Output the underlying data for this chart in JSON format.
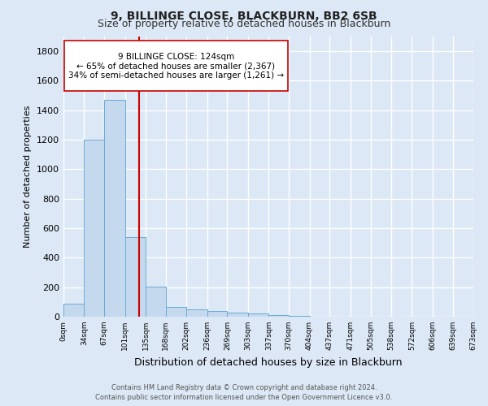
{
  "title": "9, BILLINGE CLOSE, BLACKBURN, BB2 6SB",
  "subtitle": "Size of property relative to detached houses in Blackburn",
  "xlabel": "Distribution of detached houses by size in Blackburn",
  "ylabel": "Number of detached properties",
  "bin_edges": [
    0,
    34,
    67,
    101,
    135,
    168,
    202,
    236,
    269,
    303,
    337,
    370,
    404,
    437,
    471,
    505,
    538,
    572,
    606,
    639,
    673
  ],
  "bin_labels": [
    "0sqm",
    "34sqm",
    "67sqm",
    "101sqm",
    "135sqm",
    "168sqm",
    "202sqm",
    "236sqm",
    "269sqm",
    "303sqm",
    "337sqm",
    "370sqm",
    "404sqm",
    "437sqm",
    "471sqm",
    "505sqm",
    "538sqm",
    "572sqm",
    "606sqm",
    "639sqm",
    "673sqm"
  ],
  "counts": [
    90,
    1200,
    1470,
    540,
    205,
    65,
    50,
    40,
    30,
    20,
    10,
    5,
    0,
    0,
    0,
    0,
    0,
    0,
    0,
    0
  ],
  "bar_color": "#c5d9ee",
  "bar_edge_color": "#6aaad4",
  "property_value": 124,
  "vline_color": "#cc0000",
  "annotation_line1": "9 BILLINGE CLOSE: 124sqm",
  "annotation_line2": "← 65% of detached houses are smaller (2,367)",
  "annotation_line3": "34% of semi-detached houses are larger (1,261) →",
  "annotation_box_color": "#ffffff",
  "annotation_box_edge_color": "#cc0000",
  "ylim": [
    0,
    1900
  ],
  "background_color": "#dce8f5",
  "grid_color": "#ffffff",
  "footer_line1": "Contains HM Land Registry data © Crown copyright and database right 2024.",
  "footer_line2": "Contains public sector information licensed under the Open Government Licence v3.0."
}
